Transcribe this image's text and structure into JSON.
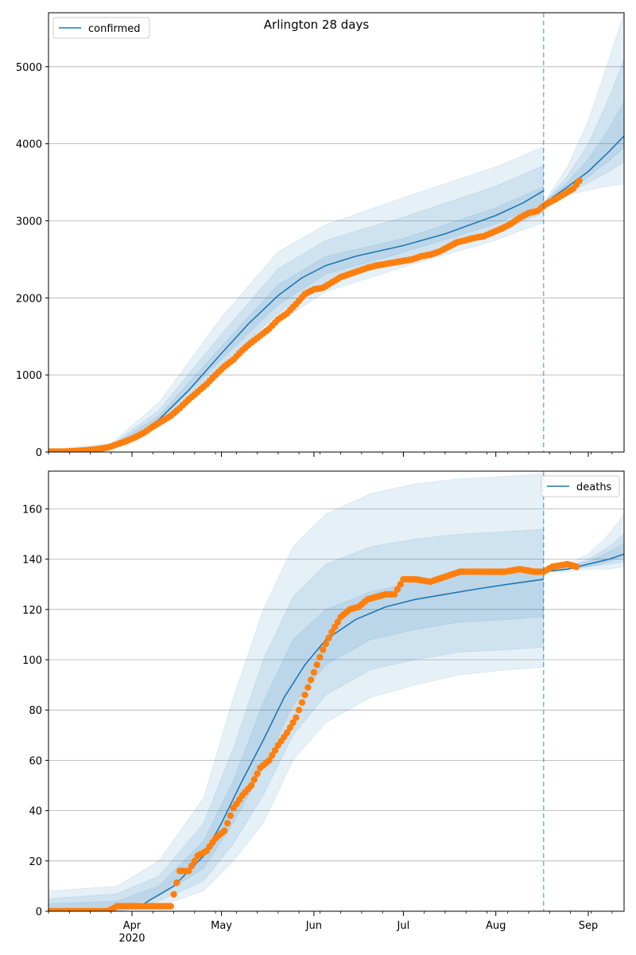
{
  "figure_title": "Arlington 28 days",
  "colors": {
    "model": "#1f77b4",
    "observed": "#ff7f0e",
    "band": "#1f77b4",
    "grid": "#b0b0b0",
    "forecast_line": "#1f77b4"
  },
  "x_axis": {
    "range": [
      "2020-03-04",
      "2020-09-13"
    ],
    "major_ticks": [
      {
        "date": "2020-04-01",
        "label": "Apr",
        "sublabel": "2020"
      },
      {
        "date": "2020-05-01",
        "label": "May",
        "sublabel": ""
      },
      {
        "date": "2020-06-01",
        "label": "Jun",
        "sublabel": ""
      },
      {
        "date": "2020-07-01",
        "label": "Jul",
        "sublabel": ""
      },
      {
        "date": "2020-08-01",
        "label": "Aug",
        "sublabel": ""
      },
      {
        "date": "2020-09-01",
        "label": "Sep",
        "sublabel": ""
      }
    ],
    "forecast_start": "2020-08-17"
  },
  "chart_data": [
    {
      "type": "line",
      "legend": "confirmed",
      "legend_position": "top-left",
      "grid": "horizontal",
      "ylim": [
        0,
        5700
      ],
      "yticks": [
        0,
        1000,
        2000,
        3000,
        4000,
        5000
      ],
      "model_line": {
        "x": [
          "2020-03-04",
          "2020-03-15",
          "2020-03-25",
          "2020-04-01",
          "2020-04-10",
          "2020-04-20",
          "2020-05-01",
          "2020-05-10",
          "2020-05-20",
          "2020-05-28",
          "2020-06-05",
          "2020-06-15",
          "2020-07-01",
          "2020-07-15",
          "2020-08-01",
          "2020-08-10",
          "2020-08-17"
        ],
        "y": [
          10,
          25,
          60,
          170,
          420,
          800,
          1280,
          1660,
          2030,
          2260,
          2420,
          2540,
          2680,
          2830,
          3070,
          3230,
          3390
        ]
      },
      "forecast_line": {
        "x": [
          "2020-08-17",
          "2020-08-25",
          "2020-09-01",
          "2020-09-08",
          "2020-09-13"
        ],
        "y": [
          3220,
          3440,
          3640,
          3900,
          4100
        ]
      },
      "bands": {
        "x": [
          "2020-03-04",
          "2020-03-25",
          "2020-04-10",
          "2020-05-01",
          "2020-05-20",
          "2020-06-05",
          "2020-07-01",
          "2020-08-01",
          "2020-08-17"
        ],
        "lower": [
          [
            5,
            40,
            330,
            1060,
            1680,
            2080,
            2400,
            2750,
            2980
          ],
          [
            5,
            45,
            370,
            1130,
            1800,
            2200,
            2500,
            2850,
            3100
          ],
          [
            5,
            50,
            395,
            1200,
            1910,
            2310,
            2590,
            2960,
            3230
          ]
        ],
        "upper": [
          [
            30,
            110,
            640,
            1750,
            2600,
            2950,
            3300,
            3700,
            3960
          ],
          [
            20,
            90,
            540,
            1530,
            2380,
            2750,
            3050,
            3450,
            3720
          ],
          [
            15,
            75,
            470,
            1370,
            2170,
            2540,
            2770,
            3170,
            3440
          ]
        ]
      },
      "forecast_bands": {
        "x": [
          "2020-08-17",
          "2020-08-25",
          "2020-09-01",
          "2020-09-08",
          "2020-09-13"
        ],
        "lower": [
          [
            3210,
            3330,
            3400,
            3450,
            3480
          ],
          [
            3220,
            3360,
            3490,
            3640,
            3760
          ],
          [
            3230,
            3400,
            3570,
            3780,
            3950
          ]
        ],
        "upper": [
          [
            3230,
            3700,
            4300,
            5100,
            5700
          ],
          [
            3230,
            3580,
            4000,
            4600,
            5100
          ],
          [
            3230,
            3500,
            3800,
            4200,
            4550
          ]
        ]
      },
      "observed": {
        "x": [
          "2020-03-04",
          "2020-03-08",
          "2020-03-12",
          "2020-03-16",
          "2020-03-20",
          "2020-03-24",
          "2020-03-27",
          "2020-03-30",
          "2020-04-02",
          "2020-04-05",
          "2020-04-08",
          "2020-04-11",
          "2020-04-14",
          "2020-04-17",
          "2020-04-20",
          "2020-04-23",
          "2020-04-26",
          "2020-04-29",
          "2020-05-02",
          "2020-05-05",
          "2020-05-08",
          "2020-05-11",
          "2020-05-14",
          "2020-05-17",
          "2020-05-20",
          "2020-05-23",
          "2020-05-26",
          "2020-05-29",
          "2020-06-01",
          "2020-06-04",
          "2020-06-07",
          "2020-06-10",
          "2020-06-13",
          "2020-06-16",
          "2020-06-19",
          "2020-06-22",
          "2020-06-25",
          "2020-06-28",
          "2020-07-01",
          "2020-07-04",
          "2020-07-07",
          "2020-07-10",
          "2020-07-13",
          "2020-07-16",
          "2020-07-19",
          "2020-07-22",
          "2020-07-25",
          "2020-07-28",
          "2020-07-31",
          "2020-08-03",
          "2020-08-06",
          "2020-08-09",
          "2020-08-12",
          "2020-08-15",
          "2020-08-18",
          "2020-08-21",
          "2020-08-24",
          "2020-08-27",
          "2020-08-29"
        ],
        "y": [
          5,
          5,
          10,
          20,
          35,
          60,
          100,
          140,
          190,
          250,
          330,
          400,
          470,
          570,
          680,
          780,
          880,
          1000,
          1110,
          1200,
          1320,
          1420,
          1510,
          1600,
          1720,
          1800,
          1920,
          2050,
          2110,
          2130,
          2200,
          2270,
          2310,
          2350,
          2390,
          2420,
          2440,
          2460,
          2480,
          2500,
          2540,
          2560,
          2600,
          2660,
          2720,
          2750,
          2780,
          2800,
          2850,
          2900,
          2960,
          3040,
          3100,
          3130,
          3220,
          3280,
          3350,
          3420,
          3520
        ]
      }
    },
    {
      "type": "line",
      "legend": "deaths",
      "legend_position": "top-right",
      "grid": "horizontal",
      "ylim": [
        0,
        175
      ],
      "yticks": [
        0,
        20,
        40,
        60,
        80,
        100,
        120,
        140,
        160
      ],
      "model_line": {
        "x": [
          "2020-03-04",
          "2020-03-20",
          "2020-03-27",
          "2020-04-05",
          "2020-04-15",
          "2020-04-25",
          "2020-05-01",
          "2020-05-08",
          "2020-05-15",
          "2020-05-22",
          "2020-05-29",
          "2020-06-05",
          "2020-06-15",
          "2020-06-25",
          "2020-07-05",
          "2020-07-15",
          "2020-07-25",
          "2020-08-05",
          "2020-08-17"
        ],
        "y": [
          0,
          0,
          2,
          3,
          10,
          22,
          35,
          52,
          68,
          85,
          98,
          108,
          116,
          121,
          124,
          126,
          128,
          130,
          132
        ]
      },
      "forecast_line": {
        "x": [
          "2020-08-17",
          "2020-08-25",
          "2020-09-01",
          "2020-09-08",
          "2020-09-13"
        ],
        "y": [
          135,
          136,
          138,
          140,
          142
        ]
      },
      "bands": {
        "x": [
          "2020-03-04",
          "2020-03-27",
          "2020-04-10",
          "2020-04-25",
          "2020-05-05",
          "2020-05-15",
          "2020-05-25",
          "2020-06-05",
          "2020-06-20",
          "2020-07-05",
          "2020-07-20",
          "2020-08-05",
          "2020-08-17"
        ],
        "lower": [
          [
            0,
            0,
            2,
            8,
            20,
            35,
            60,
            75,
            85,
            90,
            94,
            96,
            97
          ],
          [
            0,
            0,
            4,
            12,
            27,
            46,
            70,
            86,
            96,
            100,
            103,
            104,
            105
          ],
          [
            0,
            1,
            6,
            17,
            35,
            57,
            82,
            98,
            108,
            112,
            115,
            116,
            117
          ]
        ],
        "upper": [
          [
            8,
            10,
            20,
            45,
            85,
            120,
            145,
            158,
            166,
            170,
            172,
            173,
            174
          ],
          [
            5,
            7,
            14,
            35,
            65,
            100,
            125,
            138,
            145,
            148,
            150,
            151,
            152
          ],
          [
            3,
            4,
            10,
            28,
            52,
            83,
            108,
            120,
            127,
            131,
            133,
            134,
            135
          ]
        ]
      },
      "forecast_bands": {
        "x": [
          "2020-08-17",
          "2020-08-25",
          "2020-09-01",
          "2020-09-08",
          "2020-09-13"
        ],
        "lower": [
          [
            135,
            135,
            136,
            136,
            137
          ],
          [
            135,
            136,
            137,
            138,
            139
          ],
          [
            135,
            136,
            137,
            139,
            141
          ]
        ],
        "upper": [
          [
            135,
            138,
            142,
            150,
            158
          ],
          [
            135,
            137,
            140,
            145,
            150
          ],
          [
            135,
            137,
            139,
            143,
            146
          ]
        ]
      },
      "observed": {
        "x": [
          "2020-03-04",
          "2020-03-14",
          "2020-03-24",
          "2020-03-27",
          "2020-04-01",
          "2020-04-07",
          "2020-04-14",
          "2020-04-17",
          "2020-04-20",
          "2020-04-23",
          "2020-04-26",
          "2020-04-29",
          "2020-05-02",
          "2020-05-05",
          "2020-05-08",
          "2020-05-11",
          "2020-05-14",
          "2020-05-17",
          "2020-05-20",
          "2020-05-23",
          "2020-05-26",
          "2020-05-29",
          "2020-06-01",
          "2020-06-04",
          "2020-06-07",
          "2020-06-10",
          "2020-06-13",
          "2020-06-16",
          "2020-06-19",
          "2020-06-22",
          "2020-06-25",
          "2020-06-28",
          "2020-07-01",
          "2020-07-05",
          "2020-07-10",
          "2020-07-15",
          "2020-07-20",
          "2020-07-25",
          "2020-07-30",
          "2020-08-04",
          "2020-08-09",
          "2020-08-14",
          "2020-08-17",
          "2020-08-20",
          "2020-08-25",
          "2020-08-28"
        ],
        "y": [
          0,
          0,
          0,
          2,
          2,
          2,
          2,
          16,
          16,
          22,
          24,
          29,
          32,
          41,
          46,
          50,
          57,
          60,
          66,
          71,
          77,
          86,
          95,
          104,
          111,
          117,
          120,
          121,
          124,
          125,
          126,
          126,
          132,
          132,
          131,
          133,
          135,
          135,
          135,
          135,
          136,
          135,
          135,
          137,
          138,
          137
        ]
      }
    }
  ]
}
